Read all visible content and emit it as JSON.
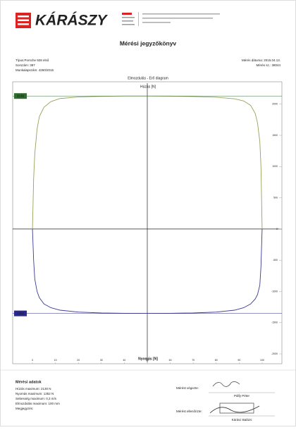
{
  "header": {
    "brand": "KÁRÁSZY",
    "title": "Mérési jegyzőkönyv"
  },
  "info": {
    "left": [
      "Típus:Porsche 928 első",
      "Sorszám: 387",
      "Munkalapszám: 4260/2015"
    ],
    "right": [
      "Mérés dátuma: 2015.04.13.",
      "Mérés sz.: 38044"
    ]
  },
  "chart_data": {
    "type": "line",
    "title": "Elmozdulás - Erő diagram",
    "top_label": "Húzás [N]",
    "bottom_label": "Nyomás [N]",
    "xlim": [
      -8,
      108
    ],
    "xticks": [
      0,
      10,
      20,
      30,
      40,
      50,
      60,
      70,
      80,
      90,
      100
    ],
    "ylim": [
      -2000,
      2200
    ],
    "yticks": [
      2000,
      1500,
      1000,
      500,
      0,
      -500,
      -1000,
      -1500,
      -2000
    ],
    "grid": false,
    "series": [
      {
        "color": "#9aa05a",
        "x": [
          0,
          0.5,
          1,
          2,
          3,
          5,
          8,
          12,
          20,
          30,
          40,
          50,
          60,
          70,
          80,
          88,
          92,
          95,
          97,
          98,
          99,
          99.5,
          100
        ],
        "values": [
          0,
          800,
          1200,
          1600,
          1800,
          1950,
          2040,
          2090,
          2115,
          2125,
          2130,
          2130,
          2128,
          2122,
          2110,
          2085,
          2050,
          1980,
          1850,
          1700,
          1400,
          1000,
          0
        ]
      },
      {
        "color": "#3b3b8f",
        "x": [
          0,
          0.5,
          1,
          2,
          3,
          5,
          8,
          12,
          20,
          30,
          40,
          50,
          60,
          70,
          80,
          88,
          92,
          95,
          97,
          98,
          99,
          99.5,
          100
        ],
        "values": [
          0,
          -500,
          -800,
          -1000,
          -1100,
          -1200,
          -1260,
          -1300,
          -1330,
          -1345,
          -1350,
          -1352,
          -1350,
          -1345,
          -1330,
          -1300,
          -1260,
          -1200,
          -1120,
          -1050,
          -900,
          -600,
          0
        ]
      }
    ],
    "annotations": [
      {
        "value": 2130,
        "color": "#2e6b2e"
      },
      {
        "value": -1352,
        "label": "1352",
        "color": "#2a2a8a"
      }
    ]
  },
  "footer": {
    "heading": "Mérési adatok",
    "lines": [
      "Húzás maximum: 2130 N",
      "Nyomás maximum: 1352 N",
      "Sebesség maximum: 0,3 m/s",
      "Elmozdulás maximum: 100 mm",
      "Megjegyzés:"
    ],
    "measured_by_label": "Mérést végezte:",
    "measured_by": "Pálfy Péter",
    "checked_by_label": "Mérést ellenőrizte:",
    "checked_by": "Kárász Balázs"
  }
}
